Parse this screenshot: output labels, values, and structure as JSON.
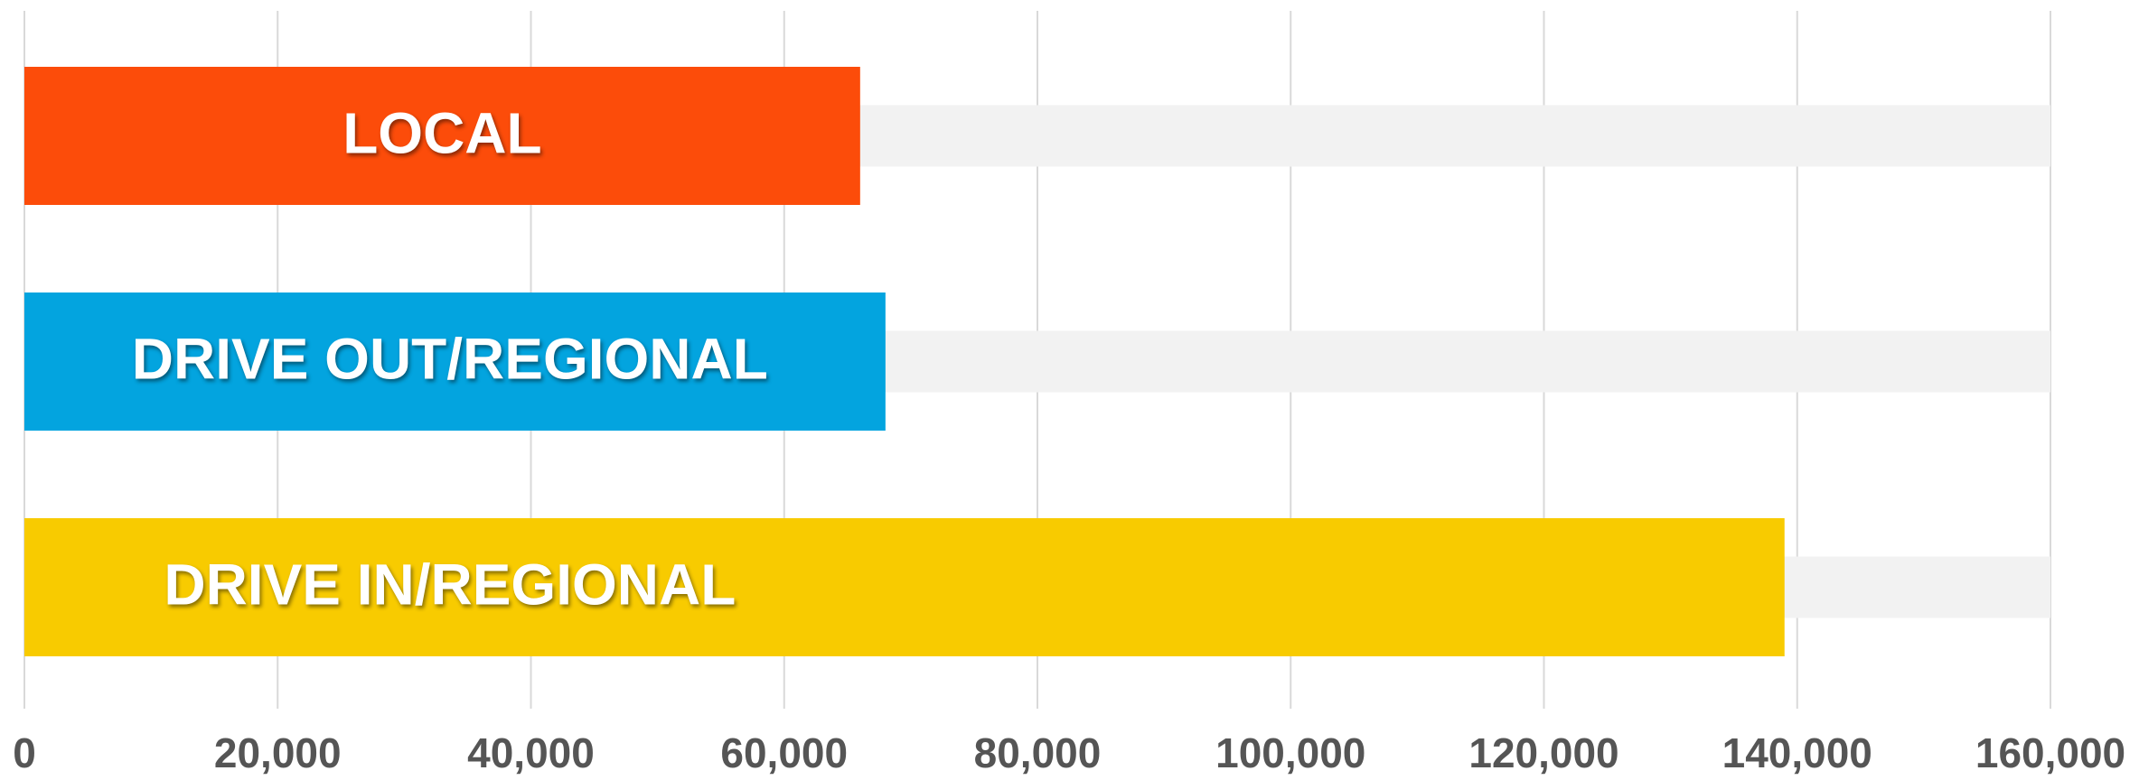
{
  "chart_data": {
    "type": "hbar",
    "categories": [
      "LOCAL",
      "DRIVE OUT/REGIONAL",
      "DRIVE IN/REGIONAL"
    ],
    "values": [
      66000,
      68000,
      139000
    ],
    "colors": [
      "#fc4c0a",
      "#03a4df",
      "#f8cb00"
    ],
    "xlim": [
      0,
      160000
    ],
    "xticks": [
      0,
      {
        "value": 20000,
        "label": "20,000"
      },
      {
        "value": 40000,
        "label": "40,000"
      },
      {
        "value": 60000,
        "label": "60,000"
      },
      {
        "value": 80000,
        "label": "80,000"
      },
      {
        "value": 100000,
        "label": "100,000"
      },
      {
        "value": 120000,
        "label": "120,000"
      },
      {
        "value": 140000,
        "label": "140,000"
      },
      {
        "value": 160000,
        "label": "160,000"
      }
    ],
    "grid": true
  }
}
